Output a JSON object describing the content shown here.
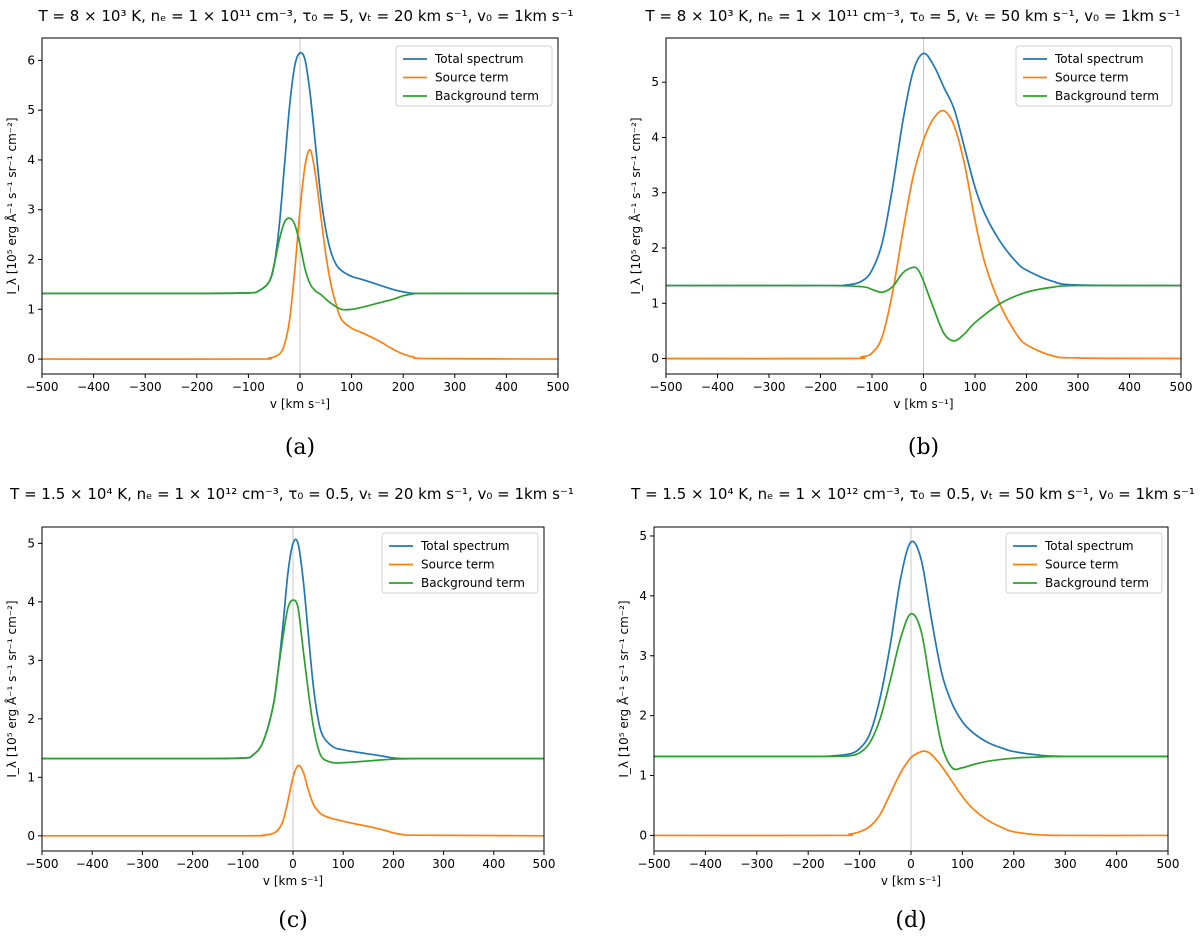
{
  "chart_data": [
    {
      "type": "line",
      "caption": "(a)",
      "title": "T = 8 × 10³ K, nₑ = 1 × 10¹¹ cm⁻³, τ₀ = 5, vₜ = 20 km s⁻¹, v₀ = 1km s⁻¹",
      "xlabel": "v [km s⁻¹]",
      "ylabel": "I_λ [10⁵ erg Å⁻¹ s⁻¹ sr⁻¹ cm⁻²]",
      "xlim": [
        -500,
        500
      ],
      "ylim": [
        -0.3,
        6.45
      ],
      "xticks": [
        -500,
        -400,
        -300,
        -200,
        -100,
        0,
        100,
        200,
        300,
        400,
        500
      ],
      "yticks": [
        0,
        1,
        2,
        3,
        4,
        5,
        6
      ],
      "vline_x": 0,
      "legend": "top-right",
      "series": [
        {
          "name": "Total spectrum",
          "color": "#1f77b4",
          "x": [
            -500,
            -200,
            -100,
            -80,
            -60,
            -50,
            -40,
            -30,
            -20,
            -10,
            0,
            10,
            20,
            30,
            40,
            50,
            60,
            70,
            80,
            100,
            120,
            150,
            180,
            200,
            220,
            250,
            300,
            400,
            500
          ],
          "values": [
            1.32,
            1.32,
            1.33,
            1.37,
            1.55,
            1.9,
            2.7,
            3.9,
            5.1,
            5.9,
            6.15,
            6.0,
            5.3,
            4.3,
            3.3,
            2.6,
            2.15,
            1.9,
            1.78,
            1.66,
            1.6,
            1.5,
            1.4,
            1.35,
            1.32,
            1.32,
            1.32,
            1.32,
            1.32
          ]
        },
        {
          "name": "Source term",
          "color": "#ff7f0e",
          "x": [
            -500,
            -100,
            -60,
            -40,
            -30,
            -20,
            -10,
            0,
            10,
            20,
            30,
            40,
            50,
            60,
            70,
            80,
            100,
            120,
            150,
            180,
            200,
            220,
            250,
            500
          ],
          "values": [
            0,
            0,
            0.02,
            0.1,
            0.3,
            0.8,
            1.8,
            3.0,
            3.9,
            4.2,
            3.7,
            2.9,
            2.1,
            1.5,
            1.1,
            0.8,
            0.62,
            0.53,
            0.38,
            0.2,
            0.1,
            0.04,
            0.01,
            0
          ]
        },
        {
          "name": "Background term",
          "color": "#2ca02c",
          "x": [
            -500,
            -200,
            -100,
            -80,
            -60,
            -50,
            -40,
            -30,
            -20,
            -10,
            0,
            10,
            20,
            30,
            40,
            60,
            80,
            100,
            120,
            150,
            180,
            200,
            220,
            250,
            500
          ],
          "values": [
            1.32,
            1.32,
            1.33,
            1.37,
            1.55,
            1.9,
            2.4,
            2.75,
            2.83,
            2.7,
            2.3,
            1.8,
            1.5,
            1.37,
            1.3,
            1.12,
            1.0,
            1.0,
            1.04,
            1.12,
            1.2,
            1.27,
            1.31,
            1.32,
            1.32
          ]
        }
      ]
    },
    {
      "type": "line",
      "caption": "(b)",
      "title": "T = 8 × 10³ K, nₑ = 1 × 10¹¹ cm⁻³, τ₀ = 5, vₜ = 50 km s⁻¹, v₀ = 1km s⁻¹",
      "xlabel": "v [km s⁻¹]",
      "ylabel": "I_λ [10⁵ erg Å⁻¹ s⁻¹ sr⁻¹ cm⁻²]",
      "xlim": [
        -500,
        500
      ],
      "ylim": [
        -0.28,
        5.8
      ],
      "xticks": [
        -500,
        -400,
        -300,
        -200,
        -100,
        0,
        100,
        200,
        300,
        400,
        500
      ],
      "yticks": [
        0,
        1,
        2,
        3,
        4,
        5
      ],
      "vline_x": 0,
      "legend": "top-right",
      "series": [
        {
          "name": "Total spectrum",
          "color": "#1f77b4",
          "x": [
            -500,
            -200,
            -150,
            -120,
            -100,
            -80,
            -60,
            -40,
            -20,
            0,
            20,
            40,
            60,
            80,
            100,
            120,
            150,
            180,
            200,
            250,
            300,
            500
          ],
          "values": [
            1.32,
            1.32,
            1.33,
            1.4,
            1.6,
            2.1,
            3.1,
            4.3,
            5.2,
            5.52,
            5.3,
            4.9,
            4.5,
            3.8,
            3.1,
            2.6,
            2.1,
            1.75,
            1.6,
            1.4,
            1.33,
            1.32
          ]
        },
        {
          "name": "Source term",
          "color": "#ff7f0e",
          "x": [
            -500,
            -150,
            -120,
            -100,
            -80,
            -60,
            -40,
            -20,
            0,
            20,
            40,
            60,
            80,
            100,
            120,
            150,
            180,
            200,
            250,
            300,
            500
          ],
          "values": [
            0,
            0,
            0.03,
            0.1,
            0.4,
            1.2,
            2.3,
            3.3,
            3.95,
            4.35,
            4.48,
            4.2,
            3.5,
            2.5,
            1.7,
            0.95,
            0.45,
            0.25,
            0.05,
            0.01,
            0
          ]
        },
        {
          "name": "Background term",
          "color": "#2ca02c",
          "x": [
            -500,
            -200,
            -120,
            -100,
            -80,
            -60,
            -40,
            -20,
            -10,
            0,
            20,
            40,
            60,
            80,
            100,
            150,
            200,
            250,
            300,
            500
          ],
          "values": [
            1.32,
            1.32,
            1.3,
            1.25,
            1.2,
            1.3,
            1.55,
            1.65,
            1.6,
            1.4,
            0.9,
            0.45,
            0.32,
            0.45,
            0.65,
            1.0,
            1.2,
            1.29,
            1.32,
            1.32
          ]
        }
      ]
    },
    {
      "type": "line",
      "caption": "(c)",
      "title": "T = 1.5 × 10⁴ K, nₑ = 1 × 10¹² cm⁻³, τ₀ = 0.5, vₜ = 20 km s⁻¹, v₀ = 1km s⁻¹",
      "xlabel": "v [km s⁻¹]",
      "ylabel": "I_λ [10⁵ erg Å⁻¹ s⁻¹ sr⁻¹ cm⁻²]",
      "xlim": [
        -500,
        500
      ],
      "ylim": [
        -0.26,
        5.28
      ],
      "xticks": [
        -500,
        -400,
        -300,
        -200,
        -100,
        0,
        100,
        200,
        300,
        400,
        500
      ],
      "yticks": [
        0,
        1,
        2,
        3,
        4,
        5
      ],
      "vline_x": 0,
      "legend": "top-right",
      "series": [
        {
          "name": "Total spectrum",
          "color": "#1f77b4",
          "x": [
            -500,
            -200,
            -100,
            -80,
            -60,
            -40,
            -30,
            -20,
            -10,
            0,
            10,
            20,
            30,
            40,
            50,
            60,
            80,
            100,
            120,
            150,
            180,
            200,
            220,
            250,
            500
          ],
          "values": [
            1.32,
            1.32,
            1.33,
            1.38,
            1.6,
            2.2,
            2.8,
            3.6,
            4.5,
            5.0,
            5.0,
            4.4,
            3.5,
            2.6,
            2.0,
            1.7,
            1.52,
            1.47,
            1.44,
            1.4,
            1.36,
            1.33,
            1.32,
            1.32,
            1.32
          ]
        },
        {
          "name": "Source term",
          "color": "#ff7f0e",
          "x": [
            -500,
            -100,
            -60,
            -40,
            -30,
            -20,
            -10,
            0,
            10,
            20,
            30,
            40,
            50,
            60,
            80,
            100,
            120,
            150,
            180,
            200,
            220,
            250,
            500
          ],
          "values": [
            0,
            0,
            0.01,
            0.04,
            0.1,
            0.25,
            0.6,
            1.0,
            1.2,
            1.1,
            0.8,
            0.55,
            0.42,
            0.35,
            0.29,
            0.25,
            0.21,
            0.16,
            0.1,
            0.05,
            0.02,
            0.01,
            0
          ]
        },
        {
          "name": "Background term",
          "color": "#2ca02c",
          "x": [
            -500,
            -200,
            -100,
            -80,
            -60,
            -40,
            -30,
            -20,
            -10,
            0,
            10,
            20,
            30,
            40,
            50,
            60,
            80,
            100,
            120,
            150,
            200,
            250,
            500
          ],
          "values": [
            1.32,
            1.32,
            1.33,
            1.38,
            1.6,
            2.2,
            2.8,
            3.4,
            3.9,
            4.03,
            3.9,
            3.2,
            2.5,
            1.9,
            1.5,
            1.32,
            1.25,
            1.25,
            1.26,
            1.28,
            1.31,
            1.32,
            1.32
          ]
        }
      ]
    },
    {
      "type": "line",
      "caption": "(d)",
      "title": "T = 1.5 × 10⁴ K, nₑ = 1 × 10¹² cm⁻³, τ₀ = 0.5, vₜ = 50 km s⁻¹, v₀ = 1km s⁻¹",
      "xlabel": "v [km s⁻¹]",
      "ylabel": "I_λ [10⁵ erg Å⁻¹ s⁻¹ sr⁻¹ cm⁻²]",
      "xlim": [
        -500,
        500
      ],
      "ylim": [
        -0.26,
        5.15
      ],
      "xticks": [
        -500,
        -400,
        -300,
        -200,
        -100,
        0,
        100,
        200,
        300,
        400,
        500
      ],
      "yticks": [
        0,
        1,
        2,
        3,
        4,
        5
      ],
      "vline_x": 0,
      "legend": "top-right",
      "series": [
        {
          "name": "Total spectrum",
          "color": "#1f77b4",
          "x": [
            -500,
            -200,
            -150,
            -120,
            -100,
            -80,
            -60,
            -40,
            -20,
            0,
            20,
            40,
            60,
            80,
            100,
            120,
            150,
            180,
            200,
            250,
            300,
            500
          ],
          "values": [
            1.32,
            1.32,
            1.33,
            1.36,
            1.45,
            1.7,
            2.3,
            3.2,
            4.3,
            4.9,
            4.6,
            3.6,
            2.7,
            2.2,
            1.9,
            1.72,
            1.55,
            1.45,
            1.4,
            1.34,
            1.32,
            1.32
          ]
        },
        {
          "name": "Source term",
          "color": "#ff7f0e",
          "x": [
            -500,
            -150,
            -120,
            -100,
            -80,
            -60,
            -40,
            -20,
            0,
            20,
            30,
            40,
            60,
            80,
            100,
            120,
            150,
            180,
            200,
            250,
            300,
            500
          ],
          "values": [
            0,
            0,
            0.02,
            0.06,
            0.15,
            0.35,
            0.7,
            1.05,
            1.3,
            1.4,
            1.4,
            1.35,
            1.15,
            0.9,
            0.65,
            0.45,
            0.25,
            0.12,
            0.06,
            0.01,
            0,
            0
          ]
        },
        {
          "name": "Background term",
          "color": "#2ca02c",
          "x": [
            -500,
            -200,
            -150,
            -120,
            -100,
            -80,
            -60,
            -40,
            -20,
            0,
            20,
            40,
            60,
            80,
            100,
            120,
            150,
            200,
            250,
            300,
            500
          ],
          "values": [
            1.32,
            1.32,
            1.32,
            1.33,
            1.38,
            1.55,
            1.95,
            2.6,
            3.3,
            3.7,
            3.4,
            2.4,
            1.5,
            1.13,
            1.13,
            1.18,
            1.24,
            1.29,
            1.31,
            1.32,
            1.32
          ]
        }
      ]
    }
  ]
}
